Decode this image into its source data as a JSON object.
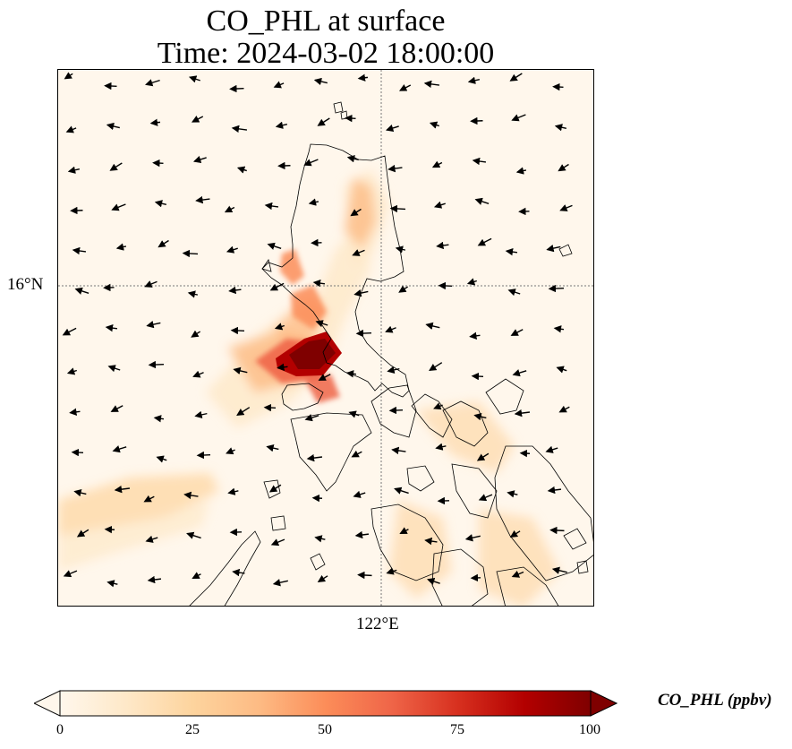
{
  "title": {
    "line1": "CO_PHL at surface",
    "line2": "Time: 2024-03-02 18:00:00"
  },
  "axes": {
    "lat_label": "16°N",
    "lon_label": "122°E"
  },
  "colorbar": {
    "label": "CO_PHL (ppbv)",
    "ticks": [
      "0",
      "25",
      "50",
      "75",
      "100"
    ],
    "min": 0,
    "max": 100,
    "colormap": [
      "#fff7ec",
      "#fee8c8",
      "#fdd49e",
      "#fdbb84",
      "#fc8d59",
      "#ef6548",
      "#d7301f",
      "#b30000",
      "#7f0000"
    ]
  },
  "colors": {
    "background": "#fff7ec",
    "gridline": "#888888",
    "coastline": "#000000",
    "arrow": "#000000"
  }
}
